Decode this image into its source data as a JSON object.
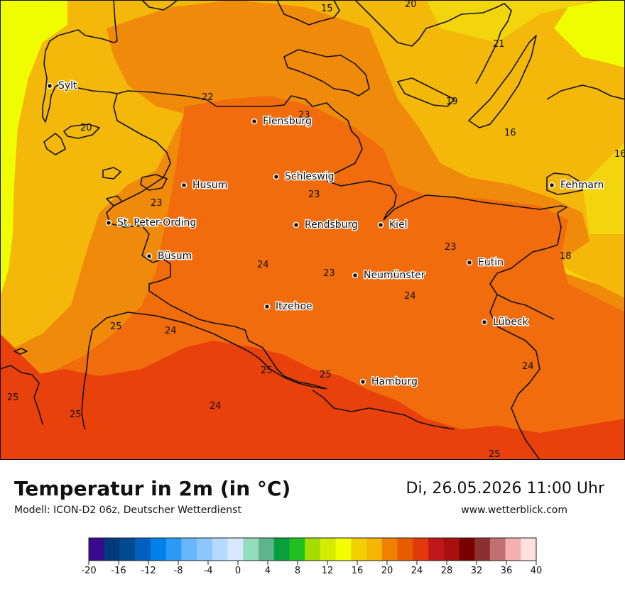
{
  "map": {
    "cities": [
      {
        "name": "Sylt"
      },
      {
        "name": "Flensburg"
      },
      {
        "name": "Schleswig"
      },
      {
        "name": "Husum"
      },
      {
        "name": "St. Peter-Ording"
      },
      {
        "name": "Rendsburg"
      },
      {
        "name": "Kiel"
      },
      {
        "name": "Büsum"
      },
      {
        "name": "Neumünster"
      },
      {
        "name": "Eutin"
      },
      {
        "name": "Fehmarn"
      },
      {
        "name": "Itzehoe"
      },
      {
        "name": "Lübeck"
      },
      {
        "name": "Hamburg"
      }
    ],
    "isoline_labels": [
      "15",
      "20",
      "21",
      "19",
      "16",
      "16",
      "22",
      "23",
      "20",
      "23",
      "23",
      "18",
      "23",
      "24",
      "23",
      "24",
      "25",
      "24",
      "24",
      "25",
      "25",
      "25",
      "24",
      "25",
      "25"
    ]
  },
  "footer": {
    "title": "Temperatur in 2m (in °C)",
    "model": "Modell: ICON-D2 06z, Deutscher Wetterdienst",
    "datetime": "Di, 26.05.2026 11:00 Uhr",
    "website": "www.wetterblick.com"
  },
  "legend": {
    "ticks": [
      "-20",
      "-16",
      "-12",
      "-8",
      "-4",
      "0",
      "4",
      "8",
      "12",
      "16",
      "20",
      "24",
      "28",
      "32",
      "36",
      "40"
    ],
    "colors": [
      "#3a0a8c",
      "#003a7a",
      "#004a90",
      "#0060c0",
      "#0080e8",
      "#2a9af5",
      "#6ab6fb",
      "#8ec6fc",
      "#b6d9fd",
      "#d6e9fe",
      "#94dcbc",
      "#5eb48c",
      "#08a03c",
      "#20c020",
      "#a4de00",
      "#d4ea00",
      "#f4fc00",
      "#f0d000",
      "#f4b600",
      "#f08000",
      "#e85c00",
      "#e03a0c",
      "#c01818",
      "#a81010",
      "#7a0000",
      "#8a3030",
      "#c07070",
      "#f4b0b0",
      "#ffe0e0"
    ]
  },
  "colors": {
    "t16": "#f0fc00",
    "t18": "#f2d50c",
    "t20": "#f3b80a",
    "t22": "#f08a0a",
    "t24": "#f06c0c",
    "t26": "#e8410c",
    "coast": "#111111"
  }
}
